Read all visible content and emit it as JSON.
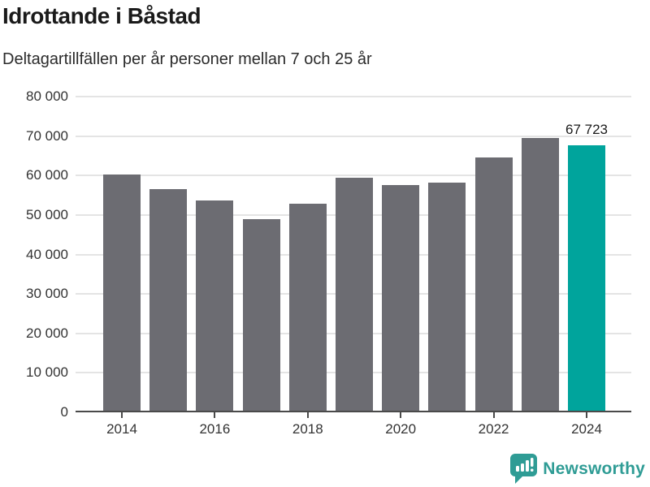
{
  "header": {
    "title": "Idrottande i Båstad",
    "subtitle": "Deltagartillfällen per år personer mellan 7 och 25 år"
  },
  "chart_data": {
    "type": "bar",
    "title": "Idrottande i Båstad",
    "subtitle": "Deltagartillfällen per år personer mellan 7 och 25 år",
    "categories": [
      2014,
      2015,
      2016,
      2017,
      2018,
      2019,
      2020,
      2021,
      2022,
      2023,
      2024
    ],
    "values": [
      60200,
      56600,
      53700,
      48900,
      52900,
      59500,
      57600,
      58300,
      64500,
      69600,
      67723
    ],
    "highlight_index": 10,
    "highlight_label": "67 723",
    "ylim": [
      0,
      80000
    ],
    "yticks": [
      {
        "value": 0,
        "label": "0"
      },
      {
        "value": 10000,
        "label": "10 000"
      },
      {
        "value": 20000,
        "label": "20 000"
      },
      {
        "value": 30000,
        "label": "30 000"
      },
      {
        "value": 40000,
        "label": "40 000"
      },
      {
        "value": 50000,
        "label": "50 000"
      },
      {
        "value": 60000,
        "label": "60 000"
      },
      {
        "value": 70000,
        "label": "70 000"
      },
      {
        "value": 80000,
        "label": "80 000"
      }
    ],
    "xticks": [
      {
        "year": 2014,
        "label": "2014"
      },
      {
        "year": 2016,
        "label": "2016"
      },
      {
        "year": 2018,
        "label": "2018"
      },
      {
        "year": 2020,
        "label": "2020"
      },
      {
        "year": 2022,
        "label": "2022"
      },
      {
        "year": 2024,
        "label": "2024"
      }
    ],
    "grid": true,
    "legend": "none",
    "bar_color": "#6C6C72",
    "highlight_color": "#00A49C"
  },
  "footer": {
    "brand": "Newsworthy",
    "brand_color": "#2F9C95"
  }
}
